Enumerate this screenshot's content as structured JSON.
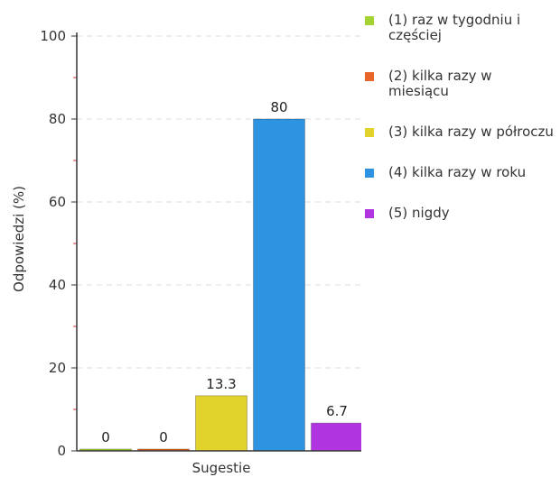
{
  "chart_data": {
    "type": "bar",
    "xlabel": "Sugestie",
    "ylabel": "Odpowiedzi (%)",
    "ylim": [
      0,
      100
    ],
    "yticks": [
      0,
      20,
      40,
      60,
      80,
      100
    ],
    "grid": true,
    "legend_position": "right",
    "series": [
      {
        "name": "(1) raz w tygodniu i częściej",
        "value": 0,
        "label": "0",
        "color": "#a4d233"
      },
      {
        "name": "(2) kilka razy w miesiącu",
        "value": 0,
        "label": "0",
        "color": "#e8662a"
      },
      {
        "name": "(3) kilka razy w półroczu",
        "value": 13.3,
        "label": "13.3",
        "color": "#e2d22c"
      },
      {
        "name": "(4) kilka razy w roku",
        "value": 80,
        "label": "80",
        "color": "#2e93e0"
      },
      {
        "name": "(5) nigdy",
        "value": 6.7,
        "label": "6.7",
        "color": "#b035e0"
      }
    ]
  }
}
